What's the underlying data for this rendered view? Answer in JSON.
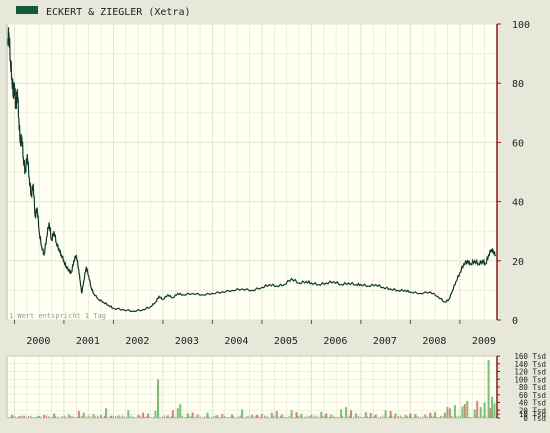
{
  "legend": {
    "label": "ECKERT & ZIEGLER (Xetra)",
    "color": "#0f5c3c"
  },
  "note": "1 Wert entspricht 1 Tag",
  "colors": {
    "background": "#e8e8da",
    "plot_background": "#fffff2",
    "grid": "#e4e4d4",
    "price_line": "#0f3a2a",
    "axis_right": "#8b1a1a",
    "volume_up": "#74c474",
    "volume_down": "#e07c7c"
  },
  "chart_data": [
    {
      "type": "line",
      "title": "ECKERT & ZIEGLER (Xetra)",
      "x_tick_labels": [
        "2000",
        "2001",
        "2002",
        "2003",
        "2004",
        "2005",
        "2006",
        "2007",
        "2008",
        "2009"
      ],
      "xlim": [
        1999.85,
        2009.75
      ],
      "y_tick_labels": [
        "0",
        "20",
        "40",
        "60",
        "80",
        "100"
      ],
      "ylim": [
        0,
        100
      ],
      "grid": true,
      "legend_position": "top-left",
      "series": [
        {
          "name": "ECKERT & ZIEGLER (Xetra)",
          "points": [
            [
              1999.87,
              95
            ],
            [
              1999.89,
              97
            ],
            [
              1999.92,
              88
            ],
            [
              1999.95,
              82
            ],
            [
              1999.98,
              76
            ],
            [
              2000.0,
              80
            ],
            [
              2000.03,
              72
            ],
            [
              2000.06,
              78
            ],
            [
              2000.09,
              68
            ],
            [
              2000.12,
              60
            ],
            [
              2000.15,
              62
            ],
            [
              2000.18,
              55
            ],
            [
              2000.22,
              50
            ],
            [
              2000.26,
              56
            ],
            [
              2000.3,
              48
            ],
            [
              2000.34,
              42
            ],
            [
              2000.38,
              46
            ],
            [
              2000.42,
              35
            ],
            [
              2000.46,
              38
            ],
            [
              2000.5,
              30
            ],
            [
              2000.55,
              25
            ],
            [
              2000.6,
              22
            ],
            [
              2000.65,
              28
            ],
            [
              2000.7,
              33
            ],
            [
              2000.75,
              27
            ],
            [
              2000.8,
              30
            ],
            [
              2000.85,
              26
            ],
            [
              2000.9,
              24
            ],
            [
              2000.95,
              22
            ],
            [
              2001.0,
              20
            ],
            [
              2001.05,
              18
            ],
            [
              2001.1,
              17
            ],
            [
              2001.15,
              16
            ],
            [
              2001.2,
              20
            ],
            [
              2001.25,
              22
            ],
            [
              2001.3,
              17
            ],
            [
              2001.33,
              13
            ],
            [
              2001.36,
              9
            ],
            [
              2001.4,
              13
            ],
            [
              2001.45,
              18
            ],
            [
              2001.5,
              15
            ],
            [
              2001.55,
              11
            ],
            [
              2001.6,
              9
            ],
            [
              2001.7,
              7
            ],
            [
              2001.8,
              6
            ],
            [
              2001.9,
              5
            ],
            [
              2002.0,
              4
            ],
            [
              2002.2,
              3.5
            ],
            [
              2002.4,
              3
            ],
            [
              2002.6,
              3.5
            ],
            [
              2002.75,
              4.5
            ],
            [
              2002.85,
              6
            ],
            [
              2002.92,
              8
            ],
            [
              2003.0,
              7
            ],
            [
              2003.1,
              8.5
            ],
            [
              2003.2,
              7.5
            ],
            [
              2003.3,
              9
            ],
            [
              2003.4,
              8.5
            ],
            [
              2003.6,
              9
            ],
            [
              2003.8,
              8.5
            ],
            [
              2004.0,
              9
            ],
            [
              2004.2,
              9.5
            ],
            [
              2004.4,
              10
            ],
            [
              2004.6,
              10.5
            ],
            [
              2004.8,
              10
            ],
            [
              2005.0,
              11
            ],
            [
              2005.15,
              12
            ],
            [
              2005.3,
              11.5
            ],
            [
              2005.45,
              12
            ],
            [
              2005.6,
              14
            ],
            [
              2005.75,
              12.5
            ],
            [
              2005.9,
              13
            ],
            [
              2006.0,
              12.5
            ],
            [
              2006.15,
              12
            ],
            [
              2006.3,
              12.5
            ],
            [
              2006.45,
              13
            ],
            [
              2006.6,
              12
            ],
            [
              2006.75,
              12.5
            ],
            [
              2006.9,
              12
            ],
            [
              2007.0,
              12
            ],
            [
              2007.15,
              11.5
            ],
            [
              2007.3,
              12
            ],
            [
              2007.45,
              11
            ],
            [
              2007.6,
              10.5
            ],
            [
              2007.75,
              10
            ],
            [
              2007.9,
              10
            ],
            [
              2008.0,
              9.5
            ],
            [
              2008.2,
              9
            ],
            [
              2008.4,
              9.5
            ],
            [
              2008.55,
              8
            ],
            [
              2008.7,
              6
            ],
            [
              2008.78,
              7
            ],
            [
              2008.85,
              10
            ],
            [
              2008.92,
              13
            ],
            [
              2009.0,
              16
            ],
            [
              2009.08,
              19
            ],
            [
              2009.15,
              20
            ],
            [
              2009.22,
              19
            ],
            [
              2009.3,
              20
            ],
            [
              2009.38,
              19
            ],
            [
              2009.45,
              20
            ],
            [
              2009.52,
              19
            ],
            [
              2009.58,
              22
            ],
            [
              2009.64,
              24
            ],
            [
              2009.68,
              23
            ],
            [
              2009.72,
              22
            ]
          ]
        }
      ]
    },
    {
      "type": "bar",
      "x_tick_labels": [
        "2000",
        "2001",
        "2002",
        "2003",
        "2004",
        "2005",
        "2006",
        "2007",
        "2008",
        "2009"
      ],
      "xlim": [
        1999.85,
        2009.75
      ],
      "y_tick_labels": [
        "0 Tsd",
        "10 Tsd",
        "20 Tsd",
        "40 Tsd",
        "60 Tsd",
        "80 Tsd",
        "100 Tsd",
        "120 Tsd",
        "140 Tsd",
        "160 Tsd"
      ],
      "ylim": [
        0,
        160
      ],
      "grid": true,
      "series": [
        {
          "name": "",
          "points": [
            [
              1999.95,
              8
            ],
            [
              2000.2,
              6
            ],
            [
              2000.5,
              5
            ],
            [
              2000.8,
              12
            ],
            [
              2001.1,
              9
            ],
            [
              2001.4,
              14
            ],
            [
              2001.6,
              10
            ],
            [
              2001.75,
              8
            ],
            [
              2001.85,
              25
            ],
            [
              2002.1,
              7
            ],
            [
              2002.3,
              20
            ],
            [
              2002.5,
              8
            ],
            [
              2002.7,
              12
            ],
            [
              2002.85,
              18
            ],
            [
              2002.9,
              100
            ],
            [
              2003.1,
              7
            ],
            [
              2003.3,
              25
            ],
            [
              2003.35,
              36
            ],
            [
              2003.5,
              12
            ],
            [
              2003.7,
              9
            ],
            [
              2003.9,
              14
            ],
            [
              2004.1,
              7
            ],
            [
              2004.4,
              9
            ],
            [
              2004.6,
              22
            ],
            [
              2004.8,
              8
            ],
            [
              2005.0,
              10
            ],
            [
              2005.2,
              14
            ],
            [
              2005.4,
              9
            ],
            [
              2005.6,
              20
            ],
            [
              2005.8,
              11
            ],
            [
              2006.0,
              8
            ],
            [
              2006.2,
              16
            ],
            [
              2006.4,
              9
            ],
            [
              2006.6,
              22
            ],
            [
              2006.7,
              28
            ],
            [
              2006.9,
              12
            ],
            [
              2007.1,
              15
            ],
            [
              2007.3,
              9
            ],
            [
              2007.5,
              20
            ],
            [
              2007.7,
              12
            ],
            [
              2007.9,
              8
            ],
            [
              2008.1,
              10
            ],
            [
              2008.3,
              9
            ],
            [
              2008.5,
              15
            ],
            [
              2008.7,
              14
            ],
            [
              2008.8,
              25
            ],
            [
              2008.9,
              33
            ],
            [
              2009.05,
              30
            ],
            [
              2009.15,
              44
            ],
            [
              2009.3,
              22
            ],
            [
              2009.42,
              28
            ],
            [
              2009.5,
              40
            ],
            [
              2009.58,
              150
            ],
            [
              2009.65,
              55
            ],
            [
              2009.7,
              38
            ]
          ],
          "down_points": [
            [
              2000.1,
              5
            ],
            [
              2000.6,
              8
            ],
            [
              2001.3,
              18
            ],
            [
              2001.95,
              6
            ],
            [
              2002.6,
              14
            ],
            [
              2003.2,
              20
            ],
            [
              2003.6,
              14
            ],
            [
              2004.2,
              10
            ],
            [
              2004.9,
              8
            ],
            [
              2005.3,
              18
            ],
            [
              2005.7,
              15
            ],
            [
              2006.3,
              12
            ],
            [
              2006.8,
              20
            ],
            [
              2007.2,
              13
            ],
            [
              2007.6,
              18
            ],
            [
              2008.0,
              12
            ],
            [
              2008.4,
              14
            ],
            [
              2008.75,
              28
            ],
            [
              2009.1,
              36
            ],
            [
              2009.35,
              44
            ],
            [
              2009.62,
              25
            ]
          ]
        }
      ]
    }
  ]
}
